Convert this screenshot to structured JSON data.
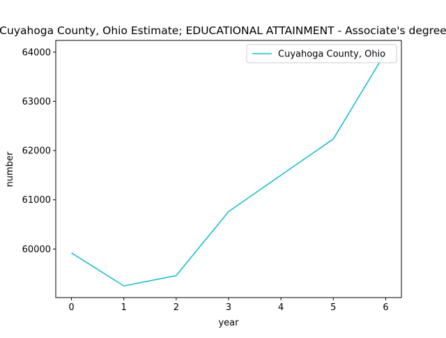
{
  "chart_data": {
    "type": "line",
    "title": "Cuyahoga County, Ohio Estimate; EDUCATIONAL ATTAINMENT - Associate's degree",
    "xlabel": "year",
    "ylabel": "number",
    "x": [
      0,
      1,
      2,
      3,
      4,
      5,
      6
    ],
    "xticks": [
      "0",
      "1",
      "2",
      "3",
      "4",
      "5",
      "6"
    ],
    "xlim": [
      -0.3,
      6.3
    ],
    "yticks": [
      60000,
      61000,
      62000,
      63000,
      64000
    ],
    "ylim": [
      59013,
      64238
    ],
    "grid": false,
    "legend_position": "top-right",
    "series": [
      {
        "name": "Cuyahoga County, Ohio",
        "color": "#17becf",
        "values": [
          59920,
          59250,
          59460,
          60760,
          61500,
          62235,
          64000
        ]
      }
    ]
  }
}
